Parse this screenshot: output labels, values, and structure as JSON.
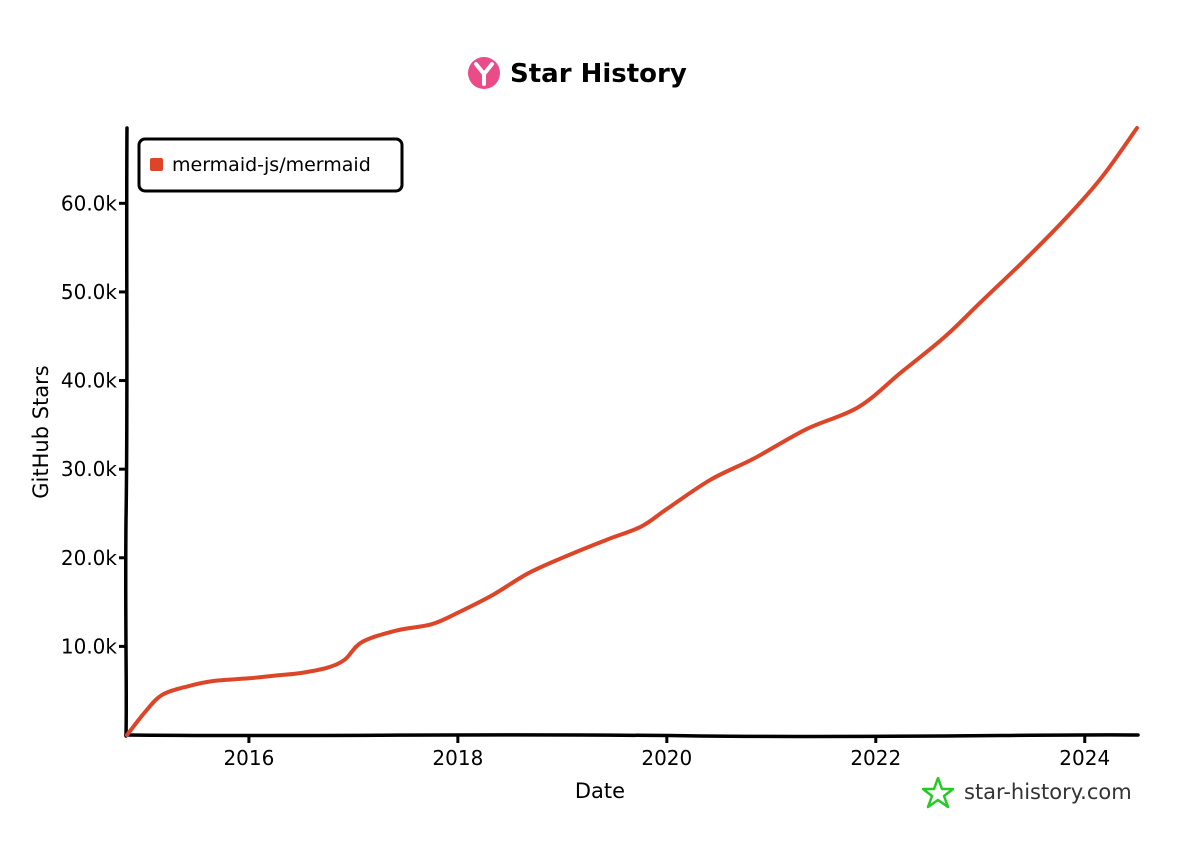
{
  "chart_data": {
    "type": "line",
    "title": "Star History",
    "xlabel": "Date",
    "ylabel": "GitHub Stars",
    "x_ticks": [
      "2016",
      "2018",
      "2020",
      "2022",
      "2024"
    ],
    "y_ticks": [
      "10.0k",
      "20.0k",
      "30.0k",
      "40.0k",
      "50.0k",
      "60.0k"
    ],
    "xlim": [
      "2014-11",
      "2024-07"
    ],
    "ylim": [
      0,
      68500
    ],
    "grid": false,
    "legend_position": "top-left",
    "series": [
      {
        "name": "mermaid-js/mermaid",
        "color": "#dd4528",
        "points": [
          {
            "x": "2014-11",
            "y": 0
          },
          {
            "x": "2015-01",
            "y": 2500
          },
          {
            "x": "2015-03",
            "y": 4500
          },
          {
            "x": "2015-06",
            "y": 5500
          },
          {
            "x": "2015-09",
            "y": 6100
          },
          {
            "x": "2016-01",
            "y": 6400
          },
          {
            "x": "2016-04",
            "y": 6700
          },
          {
            "x": "2016-07",
            "y": 7000
          },
          {
            "x": "2016-10",
            "y": 7600
          },
          {
            "x": "2016-12",
            "y": 8500
          },
          {
            "x": "2017-02",
            "y": 10500
          },
          {
            "x": "2017-06",
            "y": 11800
          },
          {
            "x": "2017-10",
            "y": 12500
          },
          {
            "x": "2018-01",
            "y": 13800
          },
          {
            "x": "2018-05",
            "y": 15800
          },
          {
            "x": "2018-09",
            "y": 18200
          },
          {
            "x": "2019-01",
            "y": 20000
          },
          {
            "x": "2019-06",
            "y": 22000
          },
          {
            "x": "2019-10",
            "y": 23500
          },
          {
            "x": "2020-01",
            "y": 25500
          },
          {
            "x": "2020-06",
            "y": 28800
          },
          {
            "x": "2020-11",
            "y": 31200
          },
          {
            "x": "2021-05",
            "y": 34500
          },
          {
            "x": "2021-11",
            "y": 37000
          },
          {
            "x": "2022-04",
            "y": 41000
          },
          {
            "x": "2022-09",
            "y": 45000
          },
          {
            "x": "2023-01",
            "y": 48800
          },
          {
            "x": "2023-06",
            "y": 53500
          },
          {
            "x": "2023-11",
            "y": 58500
          },
          {
            "x": "2024-03",
            "y": 63000
          },
          {
            "x": "2024-07",
            "y": 68500
          }
        ]
      }
    ]
  },
  "watermark": "star-history.com",
  "colors": {
    "series": "#dd4528",
    "logo": "#ea4c89",
    "watermark_star": "#22cc22"
  },
  "icons": {
    "title_logo": "star-history-logo-icon",
    "watermark_logo": "green-star-icon"
  }
}
